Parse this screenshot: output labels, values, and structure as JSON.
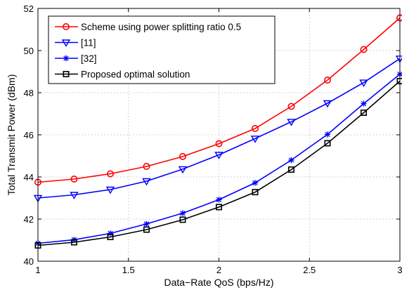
{
  "chart_data": {
    "type": "line",
    "title": "",
    "xlabel": "Data−Rate QoS (bps/Hz)",
    "ylabel": "Total Transmit Power (dBm)",
    "xlim": [
      1,
      3
    ],
    "ylim": [
      40,
      52
    ],
    "xticks": [
      1,
      1.5,
      2,
      2.5,
      3
    ],
    "xtick_labels": [
      "1",
      "1.5",
      "2",
      "2.5",
      "3"
    ],
    "yticks": [
      40,
      42,
      44,
      46,
      48,
      50,
      52
    ],
    "ytick_labels": [
      "40",
      "42",
      "44",
      "46",
      "48",
      "50",
      "52"
    ],
    "grid": true,
    "legend_position": "top-left",
    "x": [
      1.0,
      1.2,
      1.4,
      1.6,
      1.8,
      2.0,
      2.2,
      2.4,
      2.6,
      2.8,
      3.0
    ],
    "series": [
      {
        "name": "Scheme using power splitting ratio 0.5",
        "color": "#ff0000",
        "marker": "circle",
        "values": [
          43.75,
          43.9,
          44.15,
          44.5,
          44.97,
          45.58,
          46.3,
          47.35,
          48.6,
          50.05,
          51.55
        ]
      },
      {
        "name": "[11]",
        "color": "#0000ff",
        "marker": "triangle-down",
        "values": [
          43.0,
          43.15,
          43.4,
          43.8,
          44.37,
          45.05,
          45.82,
          46.62,
          47.5,
          48.48,
          49.62
        ]
      },
      {
        "name": "[32]",
        "color": "#0000ff",
        "marker": "asterisk",
        "values": [
          40.85,
          41.02,
          41.32,
          41.77,
          42.28,
          42.92,
          43.72,
          44.8,
          46.02,
          47.48,
          48.88
        ]
      },
      {
        "name": "Proposed optimal solution",
        "color": "#000000",
        "marker": "square",
        "values": [
          40.75,
          40.9,
          41.15,
          41.5,
          41.97,
          42.57,
          43.28,
          44.35,
          45.6,
          47.05,
          48.55
        ]
      }
    ]
  }
}
